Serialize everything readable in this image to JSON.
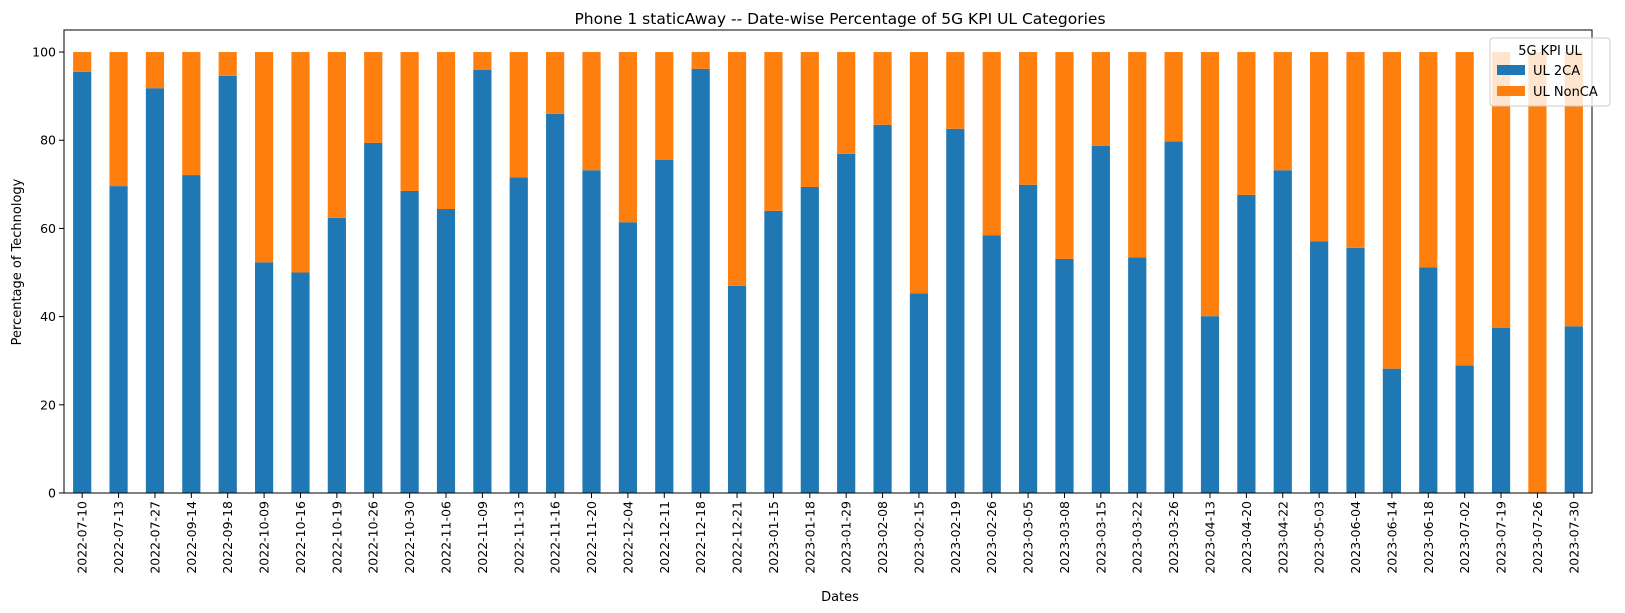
{
  "chart_data": {
    "type": "bar",
    "stacked": true,
    "title": "Phone 1 staticAway -- Date-wise Percentage of 5G KPI UL Categories",
    "xlabel": "Dates",
    "ylabel": "Percentage of Technology",
    "ylim": [
      0,
      105
    ],
    "yticks": [
      0,
      20,
      40,
      60,
      80,
      100
    ],
    "grid": false,
    "legend": {
      "title": "5G KPI UL",
      "placement": "top-right"
    },
    "categories": [
      "2022-07-10",
      "2022-07-13",
      "2022-07-27",
      "2022-09-14",
      "2022-09-18",
      "2022-10-09",
      "2022-10-16",
      "2022-10-19",
      "2022-10-26",
      "2022-10-30",
      "2022-11-06",
      "2022-11-09",
      "2022-11-13",
      "2022-11-16",
      "2022-11-20",
      "2022-12-04",
      "2022-12-11",
      "2022-12-18",
      "2022-12-21",
      "2023-01-15",
      "2023-01-18",
      "2023-01-29",
      "2023-02-08",
      "2023-02-15",
      "2023-02-19",
      "2023-02-26",
      "2023-03-05",
      "2023-03-08",
      "2023-03-15",
      "2023-03-22",
      "2023-03-26",
      "2023-04-13",
      "2023-04-20",
      "2023-04-22",
      "2023-05-03",
      "2023-06-04",
      "2023-06-14",
      "2023-06-18",
      "2023-07-02",
      "2023-07-19",
      "2023-07-26",
      "2023-07-30"
    ],
    "series": [
      {
        "name": "UL 2CA",
        "color": "#1f77b4",
        "values": [
          95.5,
          69.6,
          91.8,
          72.1,
          94.6,
          52.3,
          50.0,
          62.4,
          79.4,
          68.5,
          64.4,
          96.0,
          71.6,
          86.0,
          73.2,
          61.4,
          75.6,
          96.2,
          47.0,
          64.0,
          69.4,
          76.9,
          83.5,
          45.3,
          82.6,
          58.4,
          69.9,
          53.1,
          78.7,
          53.4,
          79.7,
          40.1,
          67.6,
          73.2,
          57.1,
          55.6,
          28.2,
          51.2,
          28.9,
          37.5,
          0.0,
          37.8
        ]
      },
      {
        "name": "UL NonCA",
        "color": "#ff7f0e",
        "values": [
          4.5,
          30.4,
          8.2,
          27.9,
          5.4,
          47.7,
          50.0,
          37.6,
          20.6,
          31.5,
          35.6,
          4.0,
          28.4,
          14.0,
          26.8,
          38.6,
          24.4,
          3.8,
          53.0,
          36.0,
          30.6,
          23.1,
          16.5,
          54.7,
          17.4,
          41.6,
          30.1,
          46.9,
          21.3,
          46.6,
          20.3,
          59.9,
          32.4,
          26.8,
          42.9,
          44.4,
          71.8,
          48.8,
          71.1,
          62.5,
          100.0,
          62.2
        ]
      }
    ]
  }
}
